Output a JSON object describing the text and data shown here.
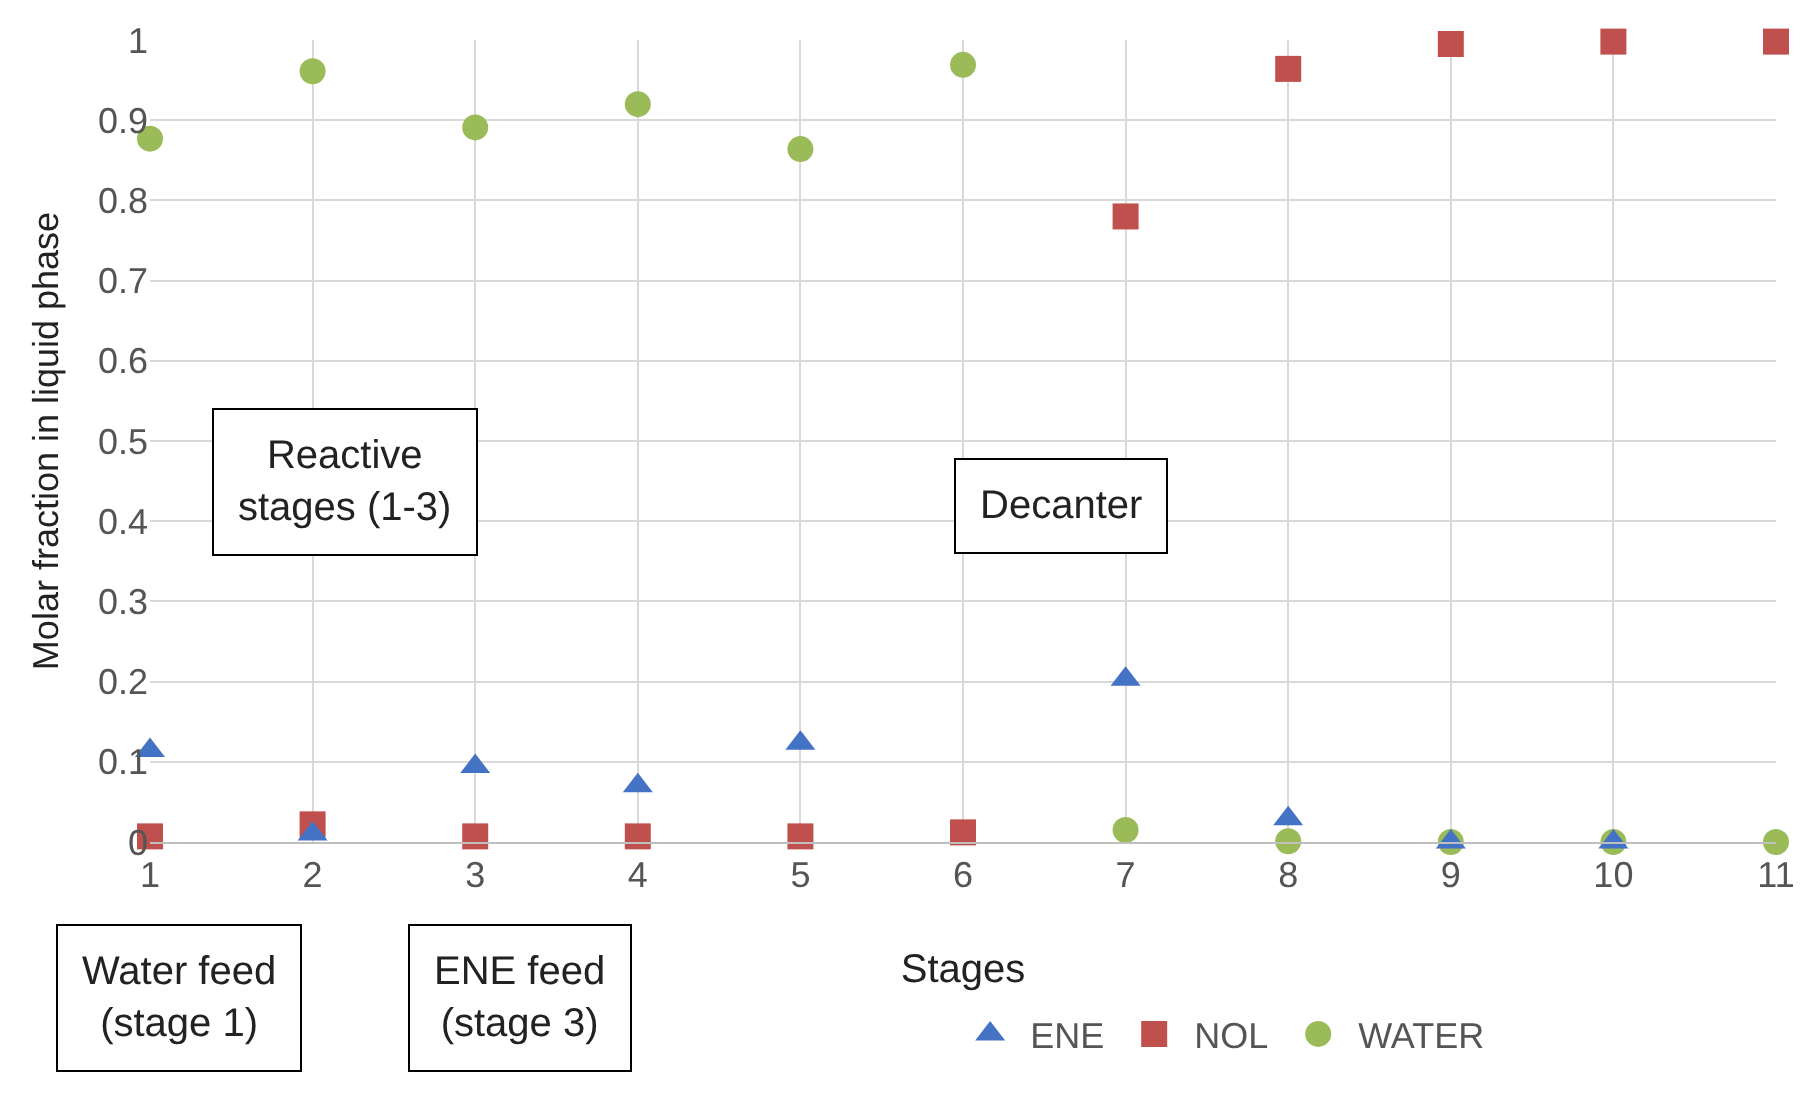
{
  "chart_data": {
    "type": "scatter",
    "xlabel": "Stages",
    "ylabel": "Molar fraction in liquid phase",
    "x": [
      1,
      2,
      3,
      4,
      5,
      6,
      7,
      8,
      9,
      10,
      11
    ],
    "xlim": [
      1,
      11
    ],
    "xticks": [
      1,
      2,
      3,
      4,
      5,
      6,
      7,
      8,
      9,
      10,
      11
    ],
    "ylim": [
      0,
      1
    ],
    "yticks": [
      0,
      0.1,
      0.2,
      0.3,
      0.4,
      0.5,
      0.6,
      0.7,
      0.8,
      0.9,
      1
    ],
    "grid": true,
    "legend": "bottom",
    "series": [
      {
        "name": "ENE",
        "color": "#4472c4",
        "marker": "triangle",
        "values": [
          0.114,
          0.01,
          0.094,
          0.07,
          0.123,
          null,
          0.203,
          0.029,
          0,
          0,
          null
        ]
      },
      {
        "name": "NOL",
        "color": "#c0504d",
        "marker": "square",
        "values": [
          0.007,
          0.022,
          0.007,
          0.007,
          0.007,
          0.012,
          0.78,
          0.964,
          0.995,
          0.998,
          0.998
        ]
      },
      {
        "name": "WATER",
        "color": "#9bbb59",
        "marker": "circle",
        "values": [
          0.877,
          0.961,
          0.891,
          0.92,
          0.864,
          0.969,
          0.015,
          0.001,
          0,
          0,
          0
        ]
      }
    ],
    "annotations": [
      "Reactive\nstages (1-3)",
      "Decanter",
      "Water feed\n(stage 1)",
      "ENE feed\n(stage 3)"
    ]
  }
}
